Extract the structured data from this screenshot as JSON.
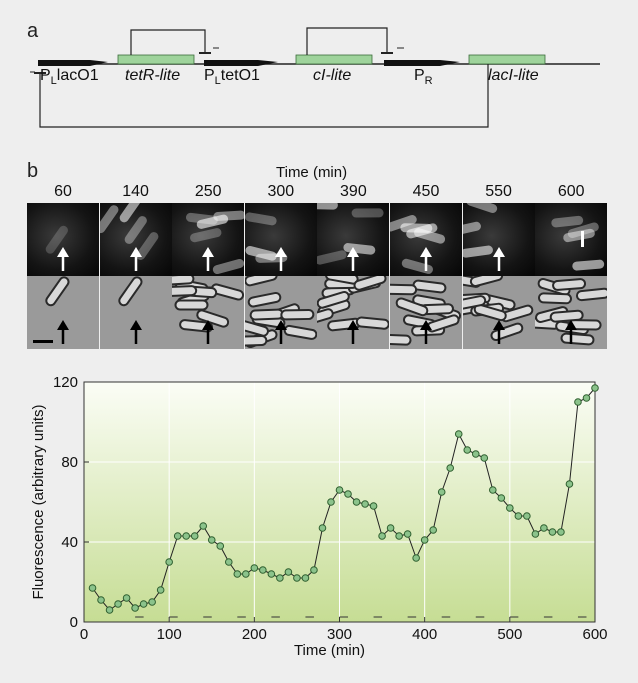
{
  "panel_a": {
    "label": "a",
    "promoter_labels": {
      "p1": {
        "main": "P",
        "sub": "L",
        "rest": "lacO1"
      },
      "p2": {
        "main": "P",
        "sub": "L",
        "rest": "tetO1"
      },
      "p3": {
        "main": "P",
        "sub": "R",
        "rest": ""
      }
    },
    "genes": [
      "tetR-lite",
      "cI-lite",
      "lacI-lite"
    ],
    "colors": {
      "gene": "#9ed39b",
      "gene_border": "#3a6b3a",
      "line": "#222222"
    }
  },
  "panel_b": {
    "label": "b",
    "time_title": "Time (min)",
    "time_points": [
      "60",
      "140",
      "250",
      "300",
      "390",
      "450",
      "550",
      "600"
    ]
  },
  "chart_data": {
    "type": "line",
    "xlabel": "Time (min)",
    "ylabel": "Fluorescence (arbitrary units)",
    "xlim": [
      0,
      600
    ],
    "ylim": [
      0,
      120
    ],
    "xticks": [
      0,
      100,
      200,
      300,
      400,
      500,
      600
    ],
    "yticks": [
      0,
      40,
      80,
      120
    ],
    "grid": true,
    "colors": {
      "marker": "#8bc38b",
      "marker_edge": "#2f5f2f",
      "line": "#222222",
      "bg_top": "#fbfdf6",
      "bg_bottom": "#c6dd94"
    },
    "x": [
      10,
      20,
      30,
      40,
      50,
      60,
      70,
      80,
      90,
      100,
      110,
      120,
      130,
      140,
      150,
      160,
      170,
      180,
      190,
      200,
      210,
      220,
      230,
      240,
      250,
      260,
      270,
      280,
      290,
      300,
      310,
      320,
      330,
      340,
      350,
      360,
      370,
      380,
      390,
      400,
      410,
      420,
      430,
      440,
      450,
      460,
      470,
      480,
      490,
      500,
      510,
      520,
      530,
      540,
      550,
      560,
      570,
      580,
      590,
      600
    ],
    "y": [
      17,
      11,
      6,
      9,
      12,
      7,
      9,
      10,
      16,
      30,
      43,
      43,
      43,
      48,
      41,
      38,
      30,
      24,
      24,
      27,
      26,
      24,
      22,
      25,
      22,
      22,
      26,
      47,
      60,
      66,
      64,
      60,
      59,
      58,
      43,
      47,
      43,
      44,
      32,
      41,
      46,
      65,
      77,
      94,
      86,
      84,
      82,
      66,
      62,
      57,
      53,
      53,
      44,
      47,
      45,
      45,
      69,
      110,
      112,
      117
    ]
  }
}
